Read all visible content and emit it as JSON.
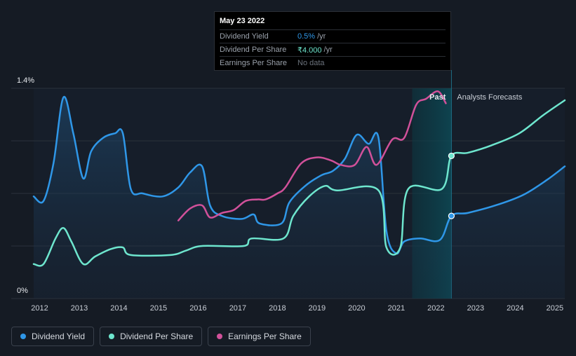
{
  "tooltip": {
    "date": "May 23 2022",
    "rows": [
      {
        "label": "Dividend Yield",
        "value": "0.5%",
        "unit": "/yr"
      },
      {
        "label": "Dividend Per Share",
        "value": "₹4.000",
        "unit": "/yr"
      },
      {
        "label": "Earnings Per Share",
        "value": "No data"
      }
    ]
  },
  "regions": {
    "past": "Past",
    "forecast": "Analysts Forecasts"
  },
  "colors": {
    "dividend_yield": "#2f97e8",
    "dividend_per_share": "#6ee6ce",
    "earnings_per_share": "#d1519a",
    "background": "#151b24"
  },
  "legend": [
    {
      "label": "Dividend Yield",
      "color": "#2f97e8"
    },
    {
      "label": "Dividend Per Share",
      "color": "#6ee6ce"
    },
    {
      "label": "Earnings Per Share",
      "color": "#d1519a"
    }
  ],
  "chart_data": {
    "type": "line",
    "title": "",
    "xlabel": "",
    "ylabel": "",
    "x_ticks": [
      "2012",
      "2013",
      "2014",
      "2015",
      "2016",
      "2017",
      "2018",
      "2019",
      "2020",
      "2021",
      "2022",
      "2023",
      "2024",
      "2025"
    ],
    "y_tick_labels": [
      "1.4%",
      "0%"
    ],
    "xlim": [
      2011.85,
      2025.25
    ],
    "ylim": [
      0,
      1.4
    ],
    "past_forecast_split": 2022.39,
    "highlight_from": 2021.4,
    "grid": true,
    "legend_position": "bottom-left",
    "series": [
      {
        "name": "Dividend Yield",
        "unit": "%",
        "area_fill": true,
        "points": [
          [
            2011.85,
            0.68
          ],
          [
            2012.1,
            0.65
          ],
          [
            2012.35,
            0.9
          ],
          [
            2012.6,
            1.34
          ],
          [
            2012.85,
            1.1
          ],
          [
            2013.1,
            0.8
          ],
          [
            2013.3,
            0.98
          ],
          [
            2013.6,
            1.07
          ],
          [
            2013.9,
            1.1
          ],
          [
            2014.1,
            1.1
          ],
          [
            2014.3,
            0.73
          ],
          [
            2014.6,
            0.7
          ],
          [
            2015.1,
            0.68
          ],
          [
            2015.5,
            0.74
          ],
          [
            2015.8,
            0.84
          ],
          [
            2016.1,
            0.88
          ],
          [
            2016.3,
            0.62
          ],
          [
            2016.6,
            0.55
          ],
          [
            2017.1,
            0.53
          ],
          [
            2017.4,
            0.56
          ],
          [
            2017.55,
            0.5
          ],
          [
            2018.1,
            0.5
          ],
          [
            2018.3,
            0.64
          ],
          [
            2018.7,
            0.75
          ],
          [
            2019.1,
            0.82
          ],
          [
            2019.4,
            0.85
          ],
          [
            2019.7,
            0.93
          ],
          [
            2020.0,
            1.09
          ],
          [
            2020.3,
            1.03
          ],
          [
            2020.55,
            1.07
          ],
          [
            2020.75,
            0.45
          ],
          [
            2021.0,
            0.3
          ],
          [
            2021.2,
            0.38
          ],
          [
            2021.6,
            0.4
          ],
          [
            2022.1,
            0.39
          ],
          [
            2022.39,
            0.55
          ],
          [
            2022.8,
            0.57
          ],
          [
            2023.5,
            0.62
          ],
          [
            2024.2,
            0.69
          ],
          [
            2024.8,
            0.79
          ],
          [
            2025.25,
            0.88
          ]
        ]
      },
      {
        "name": "Dividend Per Share",
        "unit": "INR",
        "points": [
          [
            2011.85,
            0.23
          ],
          [
            2012.1,
            0.23
          ],
          [
            2012.4,
            0.4
          ],
          [
            2012.6,
            0.47
          ],
          [
            2012.8,
            0.38
          ],
          [
            2013.1,
            0.23
          ],
          [
            2013.4,
            0.28
          ],
          [
            2013.8,
            0.33
          ],
          [
            2014.1,
            0.34
          ],
          [
            2014.3,
            0.29
          ],
          [
            2015.3,
            0.29
          ],
          [
            2015.7,
            0.32
          ],
          [
            2016.1,
            0.35
          ],
          [
            2017.15,
            0.35
          ],
          [
            2017.35,
            0.4
          ],
          [
            2018.15,
            0.4
          ],
          [
            2018.4,
            0.55
          ],
          [
            2018.8,
            0.68
          ],
          [
            2019.2,
            0.75
          ],
          [
            2019.5,
            0.72
          ],
          [
            2020.55,
            0.72
          ],
          [
            2020.75,
            0.34
          ],
          [
            2021.1,
            0.34
          ],
          [
            2021.3,
            0.73
          ],
          [
            2022.15,
            0.73
          ],
          [
            2022.39,
            0.95
          ],
          [
            2022.8,
            0.97
          ],
          [
            2023.4,
            1.02
          ],
          [
            2024.1,
            1.1
          ],
          [
            2024.7,
            1.22
          ],
          [
            2025.25,
            1.32
          ]
        ]
      },
      {
        "name": "Earnings Per Share",
        "unit": "INR",
        "points": [
          [
            2015.5,
            0.52
          ],
          [
            2015.8,
            0.6
          ],
          [
            2016.1,
            0.62
          ],
          [
            2016.3,
            0.54
          ],
          [
            2016.6,
            0.57
          ],
          [
            2016.9,
            0.59
          ],
          [
            2017.2,
            0.65
          ],
          [
            2017.5,
            0.66
          ],
          [
            2017.7,
            0.66
          ],
          [
            2018.0,
            0.7
          ],
          [
            2018.2,
            0.74
          ],
          [
            2018.6,
            0.9
          ],
          [
            2019.0,
            0.94
          ],
          [
            2019.35,
            0.92
          ],
          [
            2019.6,
            0.89
          ],
          [
            2019.95,
            0.89
          ],
          [
            2020.25,
            1.01
          ],
          [
            2020.5,
            0.89
          ],
          [
            2020.9,
            1.06
          ],
          [
            2021.2,
            1.07
          ],
          [
            2021.5,
            1.29
          ],
          [
            2021.75,
            1.33
          ],
          [
            2022.05,
            1.38
          ],
          [
            2022.25,
            1.3
          ]
        ]
      }
    ],
    "highlight_points": [
      {
        "series": "Dividend Yield",
        "x": 2022.39,
        "y": 0.55
      },
      {
        "series": "Dividend Per Share",
        "x": 2022.39,
        "y": 0.95
      }
    ]
  }
}
